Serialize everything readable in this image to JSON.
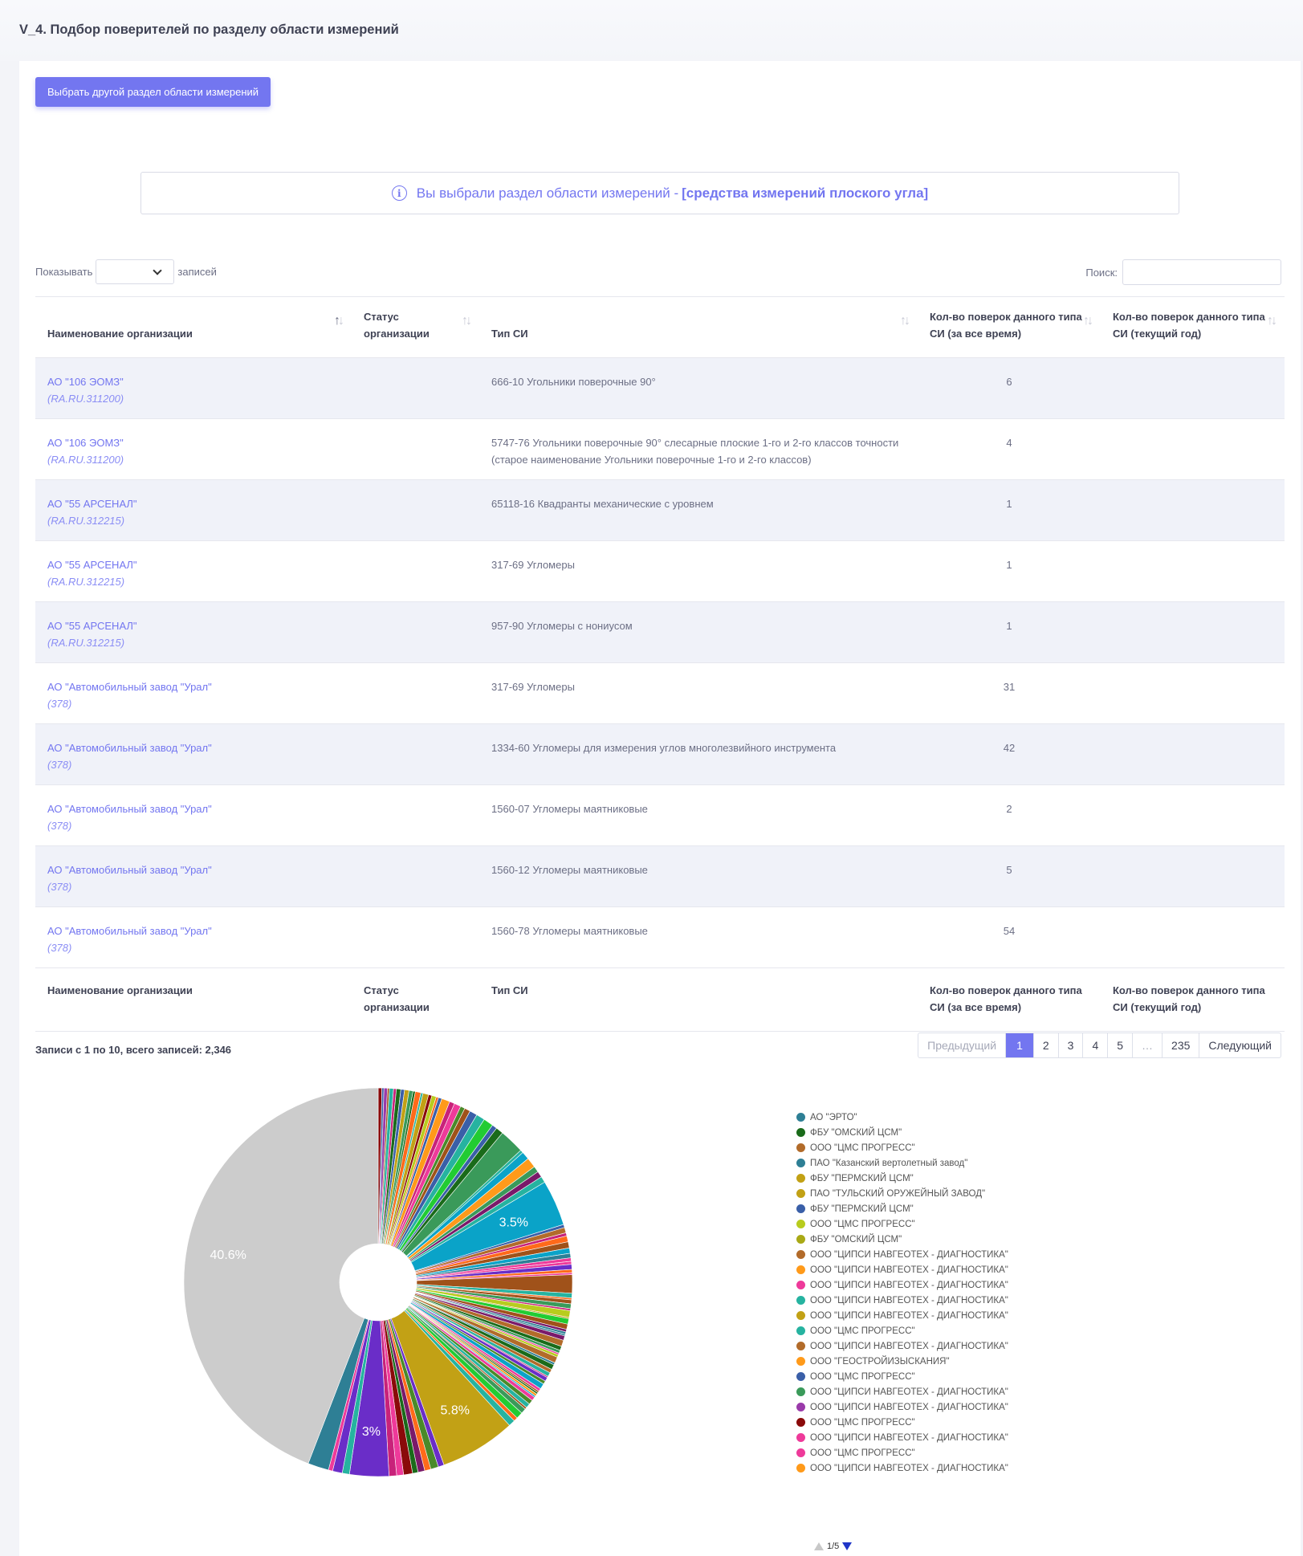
{
  "page": {
    "title": "V_4. Подбор поверителей по разделу области измерений"
  },
  "toolbar": {
    "choose_button": "Выбрать другой раздел области измерений"
  },
  "alert": {
    "prefix": "Вы выбрали раздел области измерений - ",
    "selected": "[средства измерений плоского угла]"
  },
  "length": {
    "show_label": "Показывать",
    "records_label": "записей",
    "value": ""
  },
  "search": {
    "label": "Поиск:",
    "value": ""
  },
  "table": {
    "headers": [
      "Наименование организации",
      "Статус организации",
      "Тип СИ",
      "Кол-во поверок данного типа СИ (за все время)",
      "Кол-во поверок данного типа СИ (текущий год)"
    ],
    "rows": [
      {
        "org": "АО \"106 ЭОМЗ\"",
        "code": "(RA.RU.311200)",
        "status": "",
        "type": "666-10 Угольники поверочные 90°",
        "total": "6",
        "year": ""
      },
      {
        "org": "АО \"106 ЭОМЗ\"",
        "code": "(RA.RU.311200)",
        "status": "",
        "type": "5747-76 Угольники поверочные 90° слесарные плоские 1-го и 2-го классов точности (старое наименование Угольники поверочные 1-го и 2-го классов)",
        "total": "4",
        "year": ""
      },
      {
        "org": "АО \"55 АРСЕНАЛ\"",
        "code": "(RA.RU.312215)",
        "status": "",
        "type": "65118-16 Квадранты механические с уровнем",
        "total": "1",
        "year": ""
      },
      {
        "org": "АО \"55 АРСЕНАЛ\"",
        "code": "(RA.RU.312215)",
        "status": "",
        "type": "317-69 Угломеры",
        "total": "1",
        "year": ""
      },
      {
        "org": "АО \"55 АРСЕНАЛ\"",
        "code": "(RA.RU.312215)",
        "status": "",
        "type": "957-90 Угломеры с нониусом",
        "total": "1",
        "year": ""
      },
      {
        "org": "АО \"Автомобильный завод \"Урал\"",
        "code": "(378)",
        "status": "",
        "type": "317-69 Угломеры",
        "total": "31",
        "year": ""
      },
      {
        "org": "АО \"Автомобильный завод \"Урал\"",
        "code": "(378)",
        "status": "",
        "type": "1334-60 Угломеры для измерения углов многолезвийного инструмента",
        "total": "42",
        "year": ""
      },
      {
        "org": "АО \"Автомобильный завод \"Урал\"",
        "code": "(378)",
        "status": "",
        "type": "1560-07 Угломеры маятниковые",
        "total": "2",
        "year": ""
      },
      {
        "org": "АО \"Автомобильный завод \"Урал\"",
        "code": "(378)",
        "status": "",
        "type": "1560-12 Угломеры маятниковые",
        "total": "5",
        "year": ""
      },
      {
        "org": "АО \"Автомобильный завод \"Урал\"",
        "code": "(378)",
        "status": "",
        "type": "1560-78 Угломеры маятниковые",
        "total": "54",
        "year": ""
      }
    ]
  },
  "info": {
    "text": "Записи с 1 по 10, всего записей: 2,346"
  },
  "pagination": {
    "prev": "Предыдущий",
    "pages": [
      "1",
      "2",
      "3",
      "4",
      "5",
      "…",
      "235"
    ],
    "active": "1",
    "next": "Следующий"
  },
  "chart_data": {
    "type": "pie",
    "labels_shown": [
      "40.6%",
      "3.5%",
      "3%",
      "5.8%"
    ],
    "slices": [
      {
        "value": 40.6,
        "color": "#cccccc",
        "label": "40.6%"
      },
      {
        "value": 3.5,
        "color": "#0aa3c8",
        "label": "3.5%"
      },
      {
        "value": 3.0,
        "color": "#6a2dc8",
        "label": "3%"
      },
      {
        "value": 5.8,
        "color": "#c2a115",
        "label": "5.8%"
      }
    ],
    "legend_page": "1/5",
    "legend": [
      {
        "name": "АО \"ЭРТО\"",
        "color": "#2e7f95"
      },
      {
        "name": "ФБУ \"ОМСКИЙ ЦСМ\"",
        "color": "#1a6b1a"
      },
      {
        "name": "ООО \"ЦМС ПРОГРЕСС\"",
        "color": "#b26b2a"
      },
      {
        "name": "ПАО \"Казанский вертолетный завод\"",
        "color": "#2e7f95"
      },
      {
        "name": "ФБУ \"ПЕРМСКИЙ ЦСМ\"",
        "color": "#c2a115"
      },
      {
        "name": "ПАО \"ТУЛЬСКИЙ ОРУЖЕЙНЫЙ ЗАВОД\"",
        "color": "#c2a115"
      },
      {
        "name": "ФБУ \"ПЕРМСКИЙ ЦСМ\"",
        "color": "#3a5fa8"
      },
      {
        "name": "ООО \"ЦМС ПРОГРЕСС\"",
        "color": "#b8cc1e"
      },
      {
        "name": "ФБУ \"ОМСКИЙ ЦСМ\"",
        "color": "#a9a916"
      },
      {
        "name": "ООО \"ЦИПСИ НАВГЕОТЕХ - ДИАГНОСТИКА\"",
        "color": "#b26b2a"
      },
      {
        "name": "ООО \"ЦИПСИ НАВГЕОТЕХ - ДИАГНОСТИКА\"",
        "color": "#ff9a1a"
      },
      {
        "name": "ООО \"ЦИПСИ НАВГЕОТЕХ - ДИАГНОСТИКА\"",
        "color": "#ee3a9a"
      },
      {
        "name": "ООО \"ЦИПСИ НАВГЕОТЕХ - ДИАГНОСТИКА\"",
        "color": "#26b3a0"
      },
      {
        "name": "ООО \"ЦИПСИ НАВГЕОТЕХ - ДИАГНОСТИКА\"",
        "color": "#c2a115"
      },
      {
        "name": "ООО \"ЦМС ПРОГРЕСС\"",
        "color": "#26b3a0"
      },
      {
        "name": "ООО \"ЦИПСИ НАВГЕОТЕХ - ДИАГНОСТИКА\"",
        "color": "#b26b2a"
      },
      {
        "name": "ООО \"ГЕОСТРОЙИЗЫСКАНИЯ\"",
        "color": "#ff9a1a"
      },
      {
        "name": "ООО \"ЦМС ПРОГРЕСС\"",
        "color": "#3a5fa8"
      },
      {
        "name": "ООО \"ЦИПСИ НАВГЕОТЕХ - ДИАГНОСТИКА\"",
        "color": "#3a9a5a"
      },
      {
        "name": "ООО \"ЦИПСИ НАВГЕОТЕХ - ДИАГНОСТИКА\"",
        "color": "#9a3aaa"
      },
      {
        "name": "ООО \"ЦМС ПРОГРЕСС\"",
        "color": "#8a0a0a"
      },
      {
        "name": "ООО \"ЦИПСИ НАВГЕОТЕХ - ДИАГНОСТИКА\"",
        "color": "#ee3a9a"
      },
      {
        "name": "ООО \"ЦМС ПРОГРЕСС\"",
        "color": "#ee3a9a"
      },
      {
        "name": "ООО \"ЦИПСИ НАВГЕОТЕХ - ДИАГНОСТИКА\"",
        "color": "#ff9a1a"
      }
    ]
  }
}
